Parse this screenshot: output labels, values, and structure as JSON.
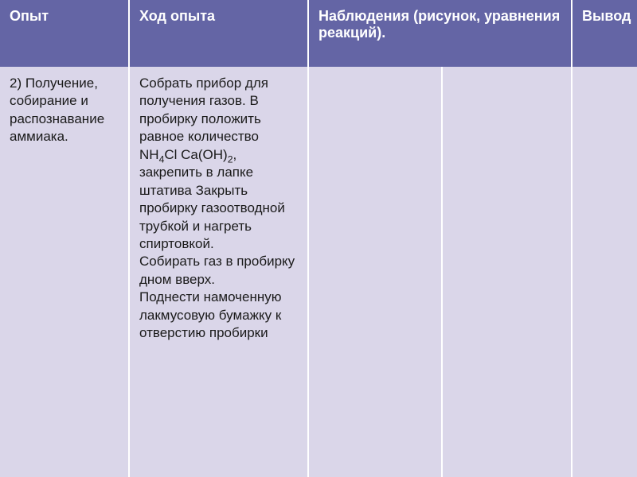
{
  "headers": {
    "experiment": "Опыт",
    "procedure": "Ход опыта",
    "observations": "Наблюдения (рисунок, уравнения реакций).",
    "conclusion": "Вывод"
  },
  "row": {
    "experiment": "2) Получение, собирание и распознавание аммиака.",
    "procedure_p1_a": "Собрать прибор для получения газов. В пробирку положить равное количество NH",
    "procedure_p1_sub1": "4",
    "procedure_p1_b": "Cl Ca(OH)",
    "procedure_p1_sub2": "2",
    "procedure_p1_c": ", закрепить в лапке штатива Закрыть пробирку газоотводной трубкой и нагреть спиртовкой.",
    "procedure_p2": "Собирать газ в пробирку дном вверх.",
    "procedure_p3": "Поднести намоченную лакмусовую бумажку к отверстию пробирки",
    "obs1": "",
    "obs2": "",
    "conclusion": ""
  },
  "colors": {
    "header_bg": "#6465a5",
    "header_text": "#ffffff",
    "cell_bg": "#dad6e9",
    "cell_text": "#1a1a1a",
    "border": "#ffffff"
  }
}
